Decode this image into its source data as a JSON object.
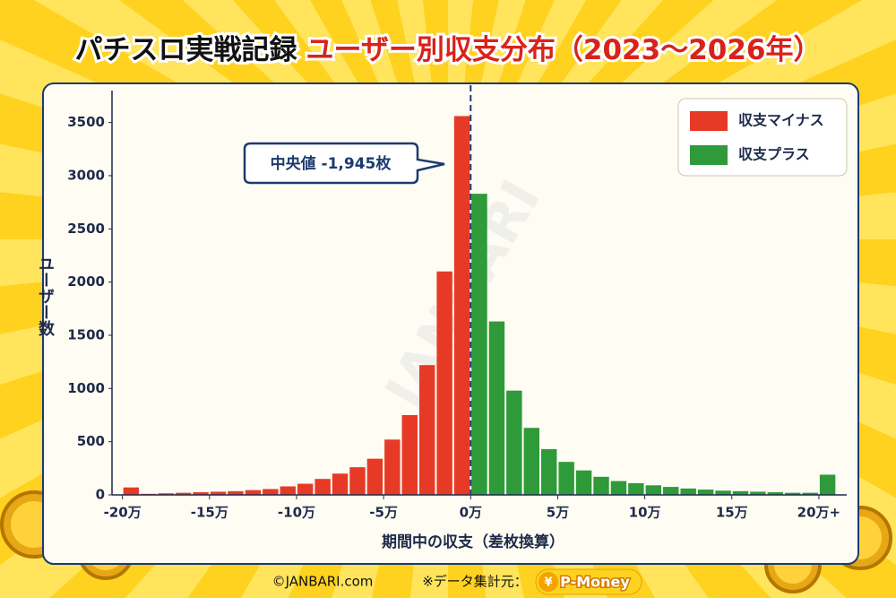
{
  "chart_data": {
    "type": "histogram",
    "title_parts": [
      "パチスロ実戦記録",
      "ユーザー別収支分布（2023〜2026年）"
    ],
    "x_label": "期間中の収支（差枚換算）",
    "y_label": "ユーザー数",
    "annotation": "中央値 -1,945枚",
    "watermark": "JANBARI",
    "legend_position": "upper right",
    "xlim": [
      -20.6,
      21.6
    ],
    "ylim": [
      0,
      3800
    ],
    "xticks": [
      {
        "value": -20,
        "label": "-20万"
      },
      {
        "value": -15,
        "label": "-15万"
      },
      {
        "value": -10,
        "label": "-10万"
      },
      {
        "value": -5,
        "label": "-5万"
      },
      {
        "value": 0,
        "label": "0万"
      },
      {
        "value": 5,
        "label": "5万"
      },
      {
        "value": 10,
        "label": "10万"
      },
      {
        "value": 15,
        "label": "15万"
      },
      {
        "value": 20,
        "label": "20万+"
      }
    ],
    "yticks": [
      0,
      500,
      1000,
      1500,
      2000,
      2500,
      3000,
      3500
    ],
    "series": [
      {
        "name": "収支マイナス",
        "color": "#e63a26",
        "bins": [
          -20,
          -19,
          -18,
          -17,
          -16,
          -15,
          -14,
          -13,
          -12,
          -11,
          -10,
          -9,
          -8,
          -7,
          -6,
          -5,
          -4,
          -3,
          -2,
          -1,
          0
        ],
        "values": [
          70,
          10,
          15,
          20,
          25,
          30,
          35,
          45,
          55,
          80,
          105,
          150,
          200,
          260,
          340,
          520,
          750,
          1220,
          2100,
          3560
        ]
      },
      {
        "name": "収支プラス",
        "color": "#2e9a3a",
        "bins": [
          0,
          1,
          2,
          3,
          4,
          5,
          6,
          7,
          8,
          9,
          10,
          11,
          12,
          13,
          14,
          15,
          16,
          17,
          18,
          19,
          20,
          21
        ],
        "values": [
          2830,
          1630,
          980,
          630,
          430,
          310,
          230,
          170,
          130,
          110,
          90,
          75,
          60,
          50,
          40,
          35,
          30,
          25,
          20,
          20,
          190
        ]
      }
    ]
  },
  "footer": {
    "copyright": "©JANBARI.com",
    "source_label": "※データ集計元：",
    "source_name": "P-Money",
    "source_icon": "¥"
  }
}
